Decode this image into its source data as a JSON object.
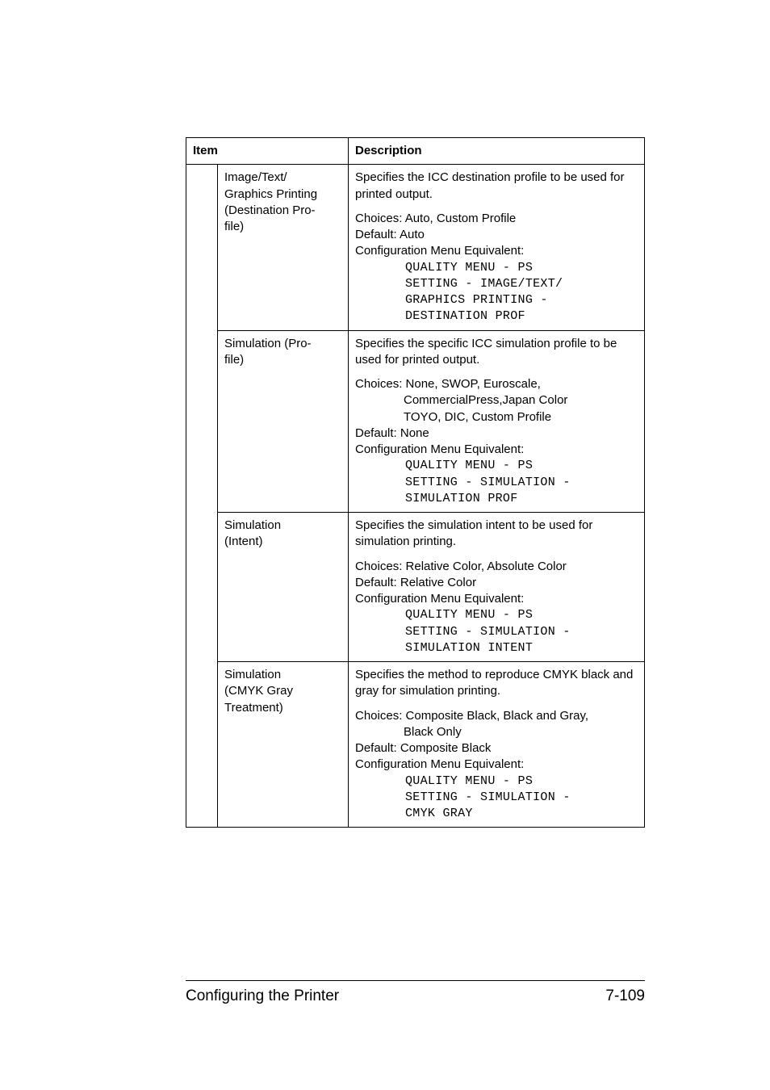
{
  "header": {
    "item": "Item",
    "description": "Description"
  },
  "rows": [
    {
      "item_lines": [
        "Image/Text/",
        "Graphics Printing",
        "(Destination Pro-",
        "file)"
      ],
      "desc_top": "Specifies the ICC destination profile to be used for printed output.",
      "choices": "Choices: Auto, Custom Profile",
      "choices_extra": [],
      "default": "Default:  Auto",
      "config": "Configuration Menu Equivalent:",
      "mono_lines": [
        "QUALITY MENU - PS",
        "SETTING - IMAGE/TEXT/",
        "GRAPHICS PRINTING -",
        "DESTINATION PROF"
      ]
    },
    {
      "item_lines": [
        "Simulation (Pro-",
        "file)"
      ],
      "desc_top": "Specifies the specific ICC simulation profile to be used for printed output.",
      "choices": "Choices: None, SWOP, Euroscale,",
      "choices_extra": [
        "CommercialPress,Japan Color",
        "TOYO, DIC, Custom Profile"
      ],
      "default": "Default:  None",
      "config": "Configuration Menu Equivalent:",
      "mono_lines": [
        "QUALITY MENU - PS",
        "SETTING - SIMULATION -",
        "SIMULATION PROF"
      ]
    },
    {
      "item_lines": [
        "Simulation",
        "(Intent)"
      ],
      "desc_top": "Specifies the simulation intent to be used for simulation printing.",
      "choices": "Choices: Relative Color, Absolute Color",
      "choices_extra": [],
      "default": "Default:  Relative Color",
      "config": "Configuration Menu Equivalent:",
      "mono_lines": [
        "QUALITY MENU - PS",
        "SETTING - SIMULATION -",
        "SIMULATION INTENT"
      ]
    },
    {
      "item_lines": [
        "Simulation",
        "(CMYK Gray",
        "Treatment)"
      ],
      "desc_top": "Specifies the method to reproduce CMYK black and gray for simulation printing.",
      "choices": "Choices: Composite Black, Black and Gray,",
      "choices_extra": [
        "Black Only"
      ],
      "default": "Default:  Composite Black",
      "config": "Configuration Menu Equivalent:",
      "mono_lines": [
        "QUALITY MENU - PS",
        "SETTING - SIMULATION -",
        "CMYK GRAY"
      ]
    }
  ],
  "footer": {
    "left": "Configuring the Printer",
    "right": "7-109"
  }
}
